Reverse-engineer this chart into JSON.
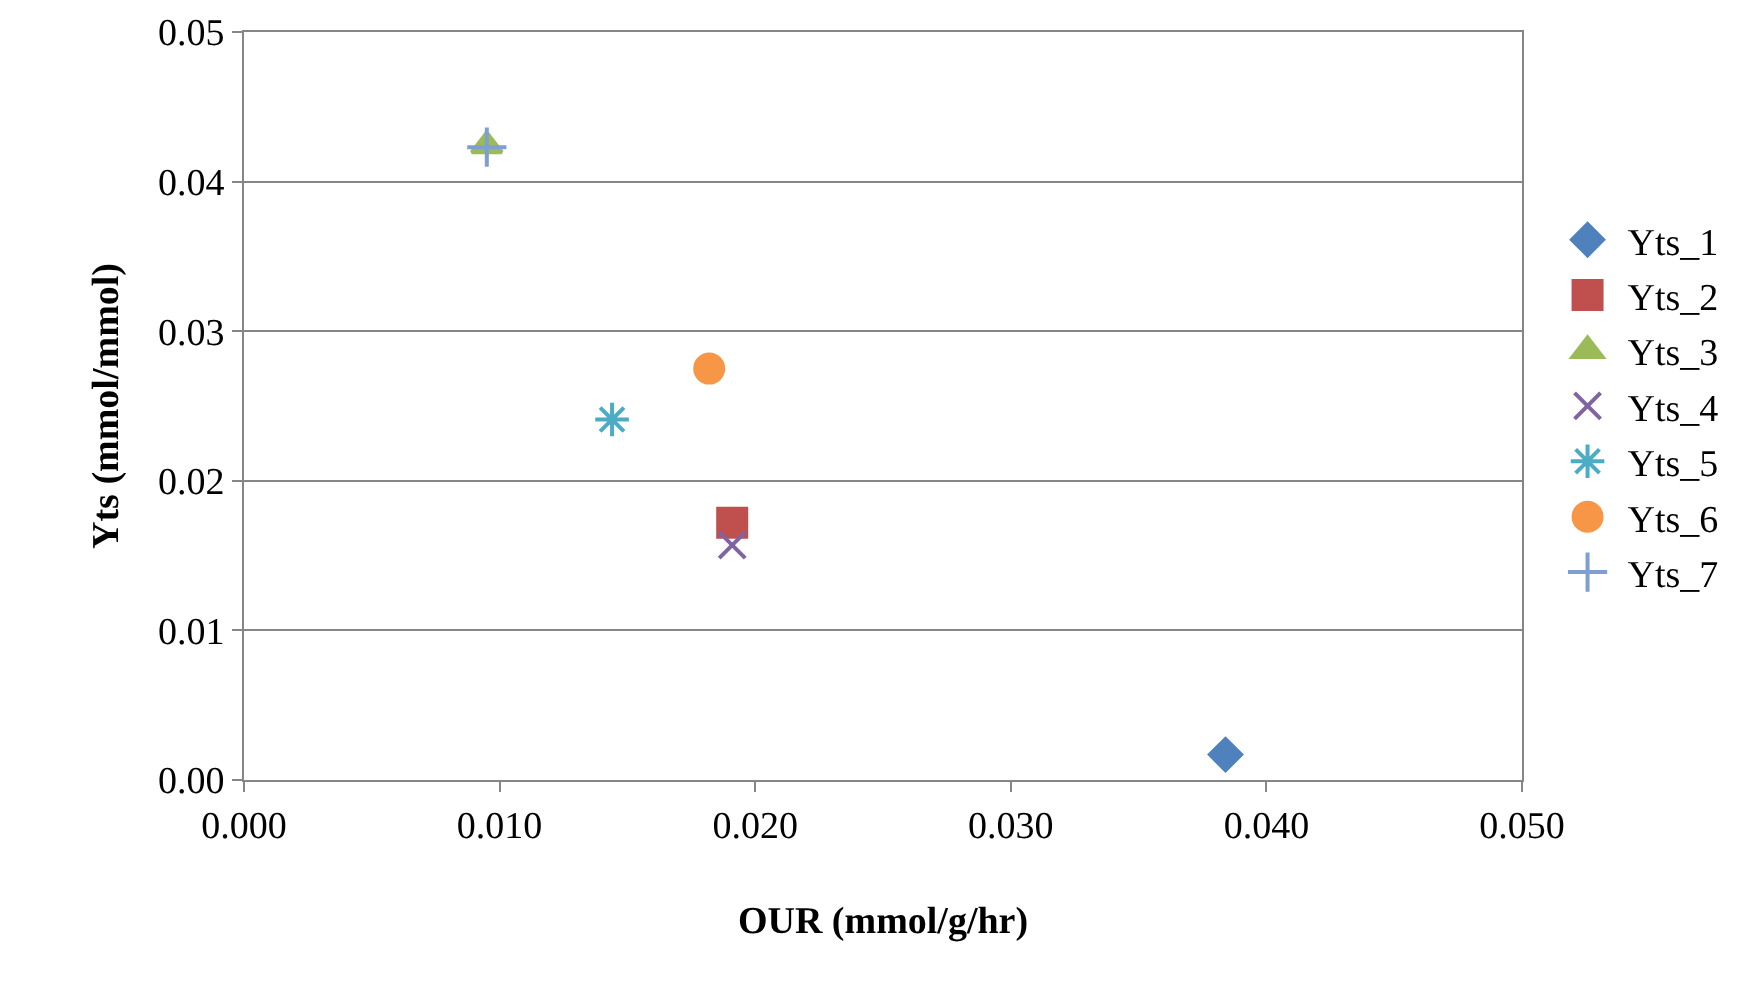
{
  "chart_data": {
    "type": "scatter",
    "xlabel": "OUR (mmol/g/hr)",
    "ylabel": "Yts (mmol/mmol)",
    "xlim": [
      0,
      0.05
    ],
    "xticks": [
      {
        "value": 0,
        "label": "0.000"
      },
      {
        "value": 0.01,
        "label": "0.010"
      },
      {
        "value": 0.02,
        "label": "0.020"
      },
      {
        "value": 0.03,
        "label": "0.030"
      },
      {
        "value": 0.04,
        "label": "0.040"
      },
      {
        "value": 0.05,
        "label": "0.050"
      }
    ],
    "ylim": [
      0,
      0.05
    ],
    "yticks": [
      {
        "value": 0,
        "label": "0.00"
      },
      {
        "value": 0.01,
        "label": "0.01"
      },
      {
        "value": 0.02,
        "label": "0.02"
      },
      {
        "value": 0.03,
        "label": "0.03"
      },
      {
        "value": 0.04,
        "label": "0.04"
      },
      0.05
    ],
    "grid": "y",
    "legend": "right",
    "series": [
      {
        "name": "Yts_1",
        "color": "#4f81bd",
        "marker": "diamond",
        "x": [
          0.0384
        ],
        "values": [
          0.0017
        ]
      },
      {
        "name": "Yts_2",
        "color": "#c0504d",
        "marker": "square",
        "x": [
          0.0191
        ],
        "values": [
          0.0172
        ]
      },
      {
        "name": "Yts_3",
        "color": "#9bbb59",
        "marker": "triangle",
        "x": [
          0.0095
        ],
        "values": [
          0.0424
        ]
      },
      {
        "name": "Yts_4",
        "color": "#8064a2",
        "marker": "x",
        "x": [
          0.0191
        ],
        "values": [
          0.0157
        ]
      },
      {
        "name": "Yts_5",
        "color": "#4bacc6",
        "marker": "cross",
        "x": [
          0.0144
        ],
        "values": [
          0.0241
        ]
      },
      {
        "name": "Yts_6",
        "color": "#f79646",
        "marker": "circle",
        "x": [
          0.0182
        ],
        "values": [
          0.0275
        ]
      },
      {
        "name": "Yts_7",
        "color": "#7f9fd3",
        "marker": "plus",
        "x": [
          0.0095
        ],
        "values": [
          0.0423
        ]
      }
    ]
  }
}
